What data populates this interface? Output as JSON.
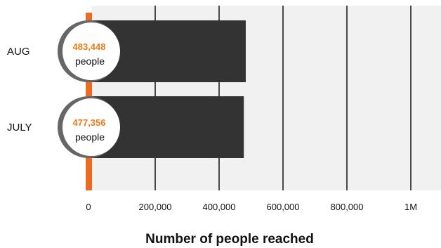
{
  "colors": {
    "plot_background": "#f1f1f1",
    "bar": "#333333",
    "baseline": "#ee6a21",
    "highlight_value": "#f07a18",
    "gridline": "#111111",
    "badge_border": "#666666",
    "badge_fill": "#ffffff"
  },
  "chart_data": {
    "type": "bar",
    "orientation": "horizontal",
    "categories": [
      "AUG",
      "JULY"
    ],
    "values": [
      483448,
      477356
    ],
    "value_labels": [
      "483,448",
      "477,356"
    ],
    "value_unit": "people",
    "xlabel": "Number of  people reached",
    "xlim": [
      0,
      1150000
    ],
    "x_ticks": [
      {
        "value": 0,
        "label": "0"
      },
      {
        "value": 200000,
        "label": "200,000"
      },
      {
        "value": 400000,
        "label": "400,000"
      },
      {
        "value": 600000,
        "label": "600,000"
      },
      {
        "value": 800000,
        "label": "800,000"
      },
      {
        "value": 1000000,
        "label": "1M"
      }
    ],
    "grid": true
  }
}
